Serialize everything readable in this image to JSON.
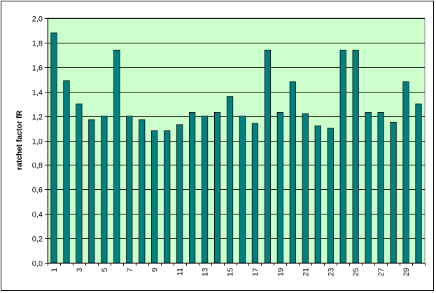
{
  "chart_data": {
    "type": "bar",
    "categories": [
      "1",
      "2",
      "3",
      "4",
      "5",
      "6",
      "7",
      "8",
      "9",
      "10",
      "11",
      "12",
      "13",
      "14",
      "15",
      "16",
      "17",
      "18",
      "19",
      "20",
      "21",
      "22",
      "23",
      "24",
      "25",
      "26",
      "27",
      "28",
      "29",
      "30"
    ],
    "x_tick_labels": [
      "1",
      "3",
      "5",
      "7",
      "9",
      "11",
      "13",
      "15",
      "17",
      "19",
      "21",
      "23",
      "25",
      "27",
      "29"
    ],
    "values": [
      1.88,
      1.49,
      1.3,
      1.17,
      1.2,
      1.74,
      1.2,
      1.17,
      1.08,
      1.08,
      1.13,
      1.23,
      1.2,
      1.23,
      1.36,
      1.2,
      1.14,
      1.74,
      1.23,
      1.48,
      1.22,
      1.12,
      1.1,
      1.74,
      1.74,
      1.23,
      1.23,
      1.15,
      1.48,
      1.3
    ],
    "ylabel": "ratchet factor fR",
    "xlabel": "",
    "ylim": [
      0,
      2.0
    ],
    "y_ticks": [
      "0,0",
      "0,2",
      "0,4",
      "0,6",
      "0,8",
      "1,0",
      "1,2",
      "1,4",
      "1,6",
      "1,8",
      "2,0"
    ],
    "grid": true,
    "colors": {
      "bar_fill": "#008080",
      "bar_stroke": "#000000",
      "plot_background": "#ccffcc",
      "gridline": "#000000"
    }
  }
}
